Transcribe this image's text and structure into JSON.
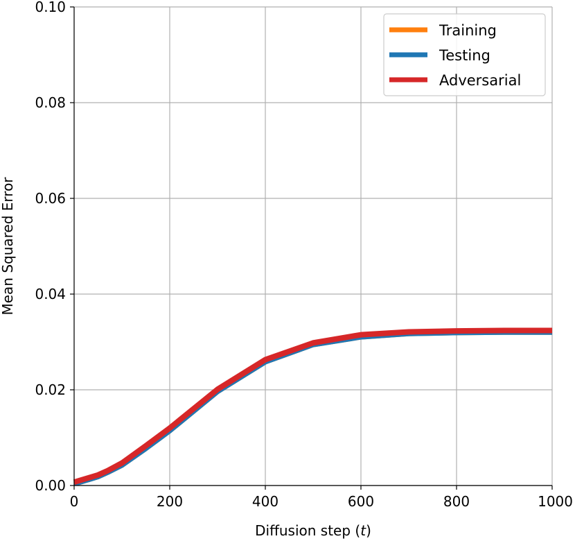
{
  "chart_data": {
    "type": "line",
    "xlabel": "Diffusion step (",
    "xlabel_var": "t",
    "xlabel_close": ")",
    "ylabel": "Mean Squared Error",
    "xlim": [
      0,
      1000
    ],
    "ylim": [
      0,
      0.1
    ],
    "x_ticks": [
      0,
      200,
      400,
      600,
      800,
      1000
    ],
    "x_tick_labels": [
      "0",
      "200",
      "400",
      "600",
      "800",
      "1000"
    ],
    "y_ticks": [
      0,
      0.02,
      0.04,
      0.06,
      0.08,
      0.1
    ],
    "y_tick_labels": [
      "0.00",
      "0.02",
      "0.04",
      "0.06",
      "0.08",
      "0.10"
    ],
    "grid": true,
    "legend_position": "top-right",
    "series": [
      {
        "name": "Training",
        "color": "#ff7f0e",
        "x": [
          0,
          10,
          30,
          50,
          70,
          100,
          150,
          200,
          300,
          400,
          500,
          600,
          700,
          800,
          900,
          1000
        ],
        "y": [
          0.0004,
          0.0006,
          0.0012,
          0.0018,
          0.0027,
          0.0042,
          0.0077,
          0.0114,
          0.0196,
          0.0258,
          0.0294,
          0.031,
          0.0317,
          0.0319,
          0.032,
          0.032
        ]
      },
      {
        "name": "Testing",
        "color": "#1f77b4",
        "x": [
          0,
          10,
          30,
          50,
          70,
          100,
          150,
          200,
          300,
          400,
          500,
          600,
          700,
          800,
          900,
          1000
        ],
        "y": [
          0.0004,
          0.0006,
          0.0012,
          0.0018,
          0.0027,
          0.0042,
          0.0077,
          0.0114,
          0.0196,
          0.0258,
          0.0294,
          0.031,
          0.0317,
          0.0319,
          0.032,
          0.032
        ]
      },
      {
        "name": "Adversarial",
        "color": "#d62728",
        "x": [
          0,
          10,
          30,
          50,
          70,
          100,
          150,
          200,
          300,
          400,
          500,
          600,
          700,
          800,
          900,
          1000
        ],
        "y": [
          0.0007,
          0.001,
          0.0016,
          0.0022,
          0.0031,
          0.0047,
          0.0083,
          0.012,
          0.0201,
          0.0263,
          0.0298,
          0.0315,
          0.0321,
          0.0323,
          0.0324,
          0.0324
        ]
      }
    ]
  }
}
